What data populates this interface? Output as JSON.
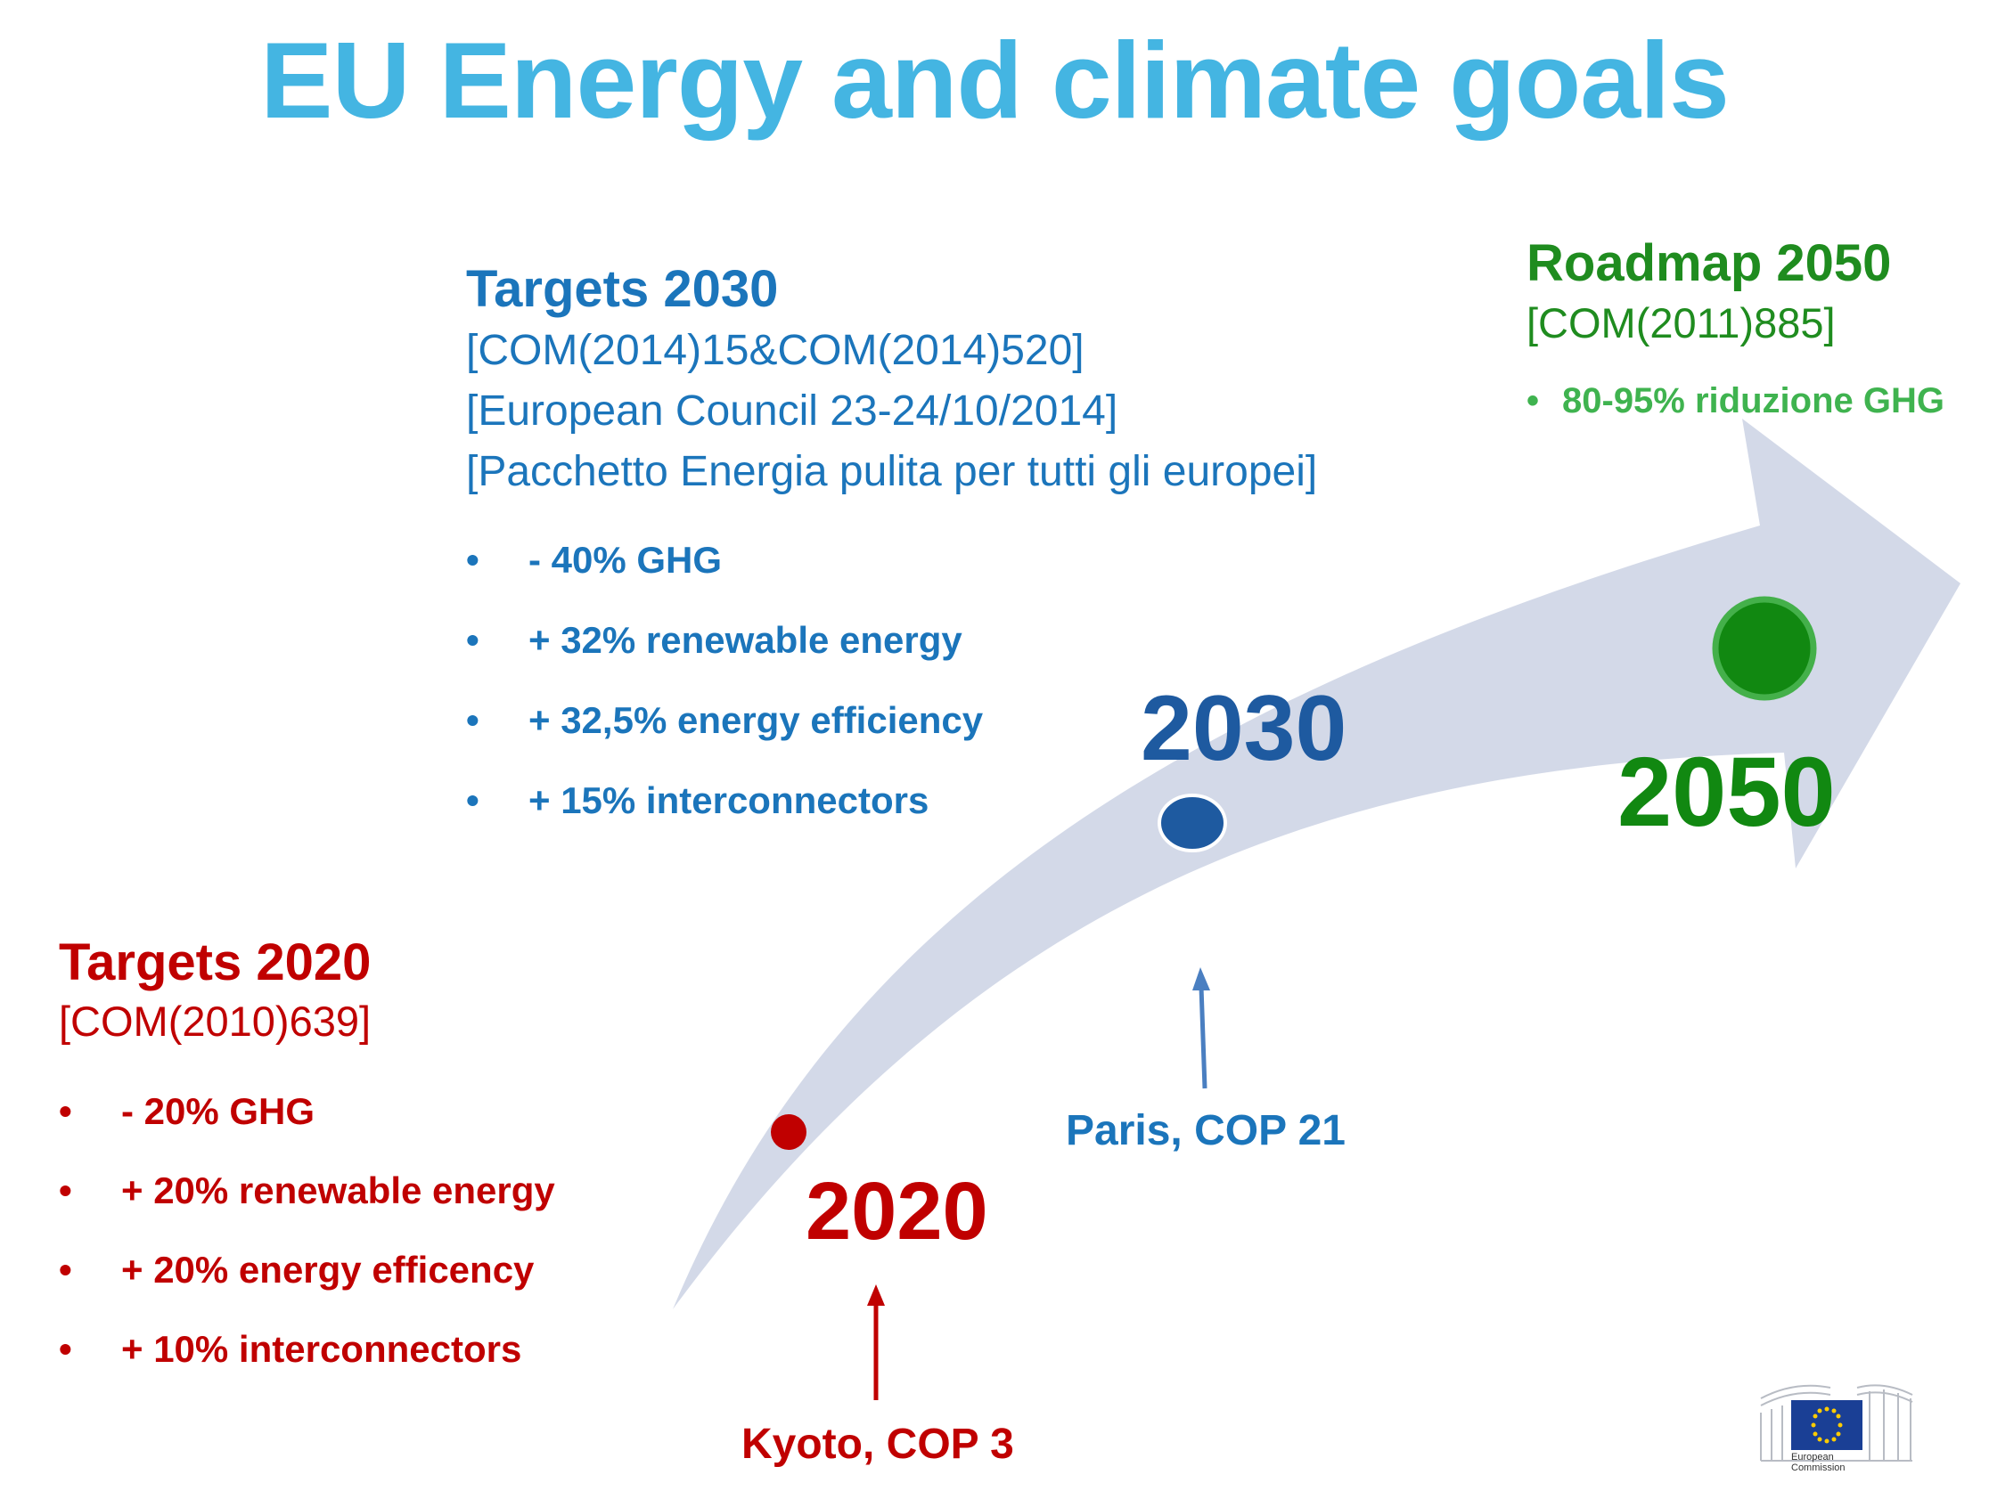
{
  "title": "EU Energy and climate goals",
  "colors": {
    "title": "#44b5e2",
    "targets_2020": "#c00000",
    "targets_2030": "#1b75bb",
    "roadmap_2050_heading": "#1f8c1f",
    "roadmap_2050_bullet": "#3fb34f",
    "arrow_fill": "#d3d9e8",
    "year_2030": "#1e5aa0",
    "year_2050": "#118811"
  },
  "targets_2030": {
    "heading": "Targets 2030",
    "refs": [
      "[COM(2014)15&COM(2014)520]",
      "[European Council 23-24/10/2014]",
      "[Pacchetto Energia pulita per tutti gli europei]"
    ],
    "items": [
      "-  40% GHG",
      "+ 32% renewable energy",
      "+ 32,5% energy efficiency",
      "+ 15% interconnectors"
    ]
  },
  "roadmap_2050": {
    "heading": "Roadmap 2050",
    "ref": "[COM(2011)885]",
    "items": [
      "80-95% riduzione GHG"
    ]
  },
  "targets_2020": {
    "heading": "Targets 2020",
    "ref": "[COM(2010)639]",
    "items": [
      "-  20% GHG",
      "+ 20% renewable energy",
      "+ 20% energy efficency",
      "+ 10% interconnectors"
    ]
  },
  "timeline": {
    "year_2020": "2020",
    "year_2030": "2030",
    "year_2050": "2050",
    "event_2020": "Kyoto, COP 3",
    "event_2030": "Paris, COP 21"
  },
  "logo": {
    "line1": "European",
    "line2": "Commission"
  }
}
